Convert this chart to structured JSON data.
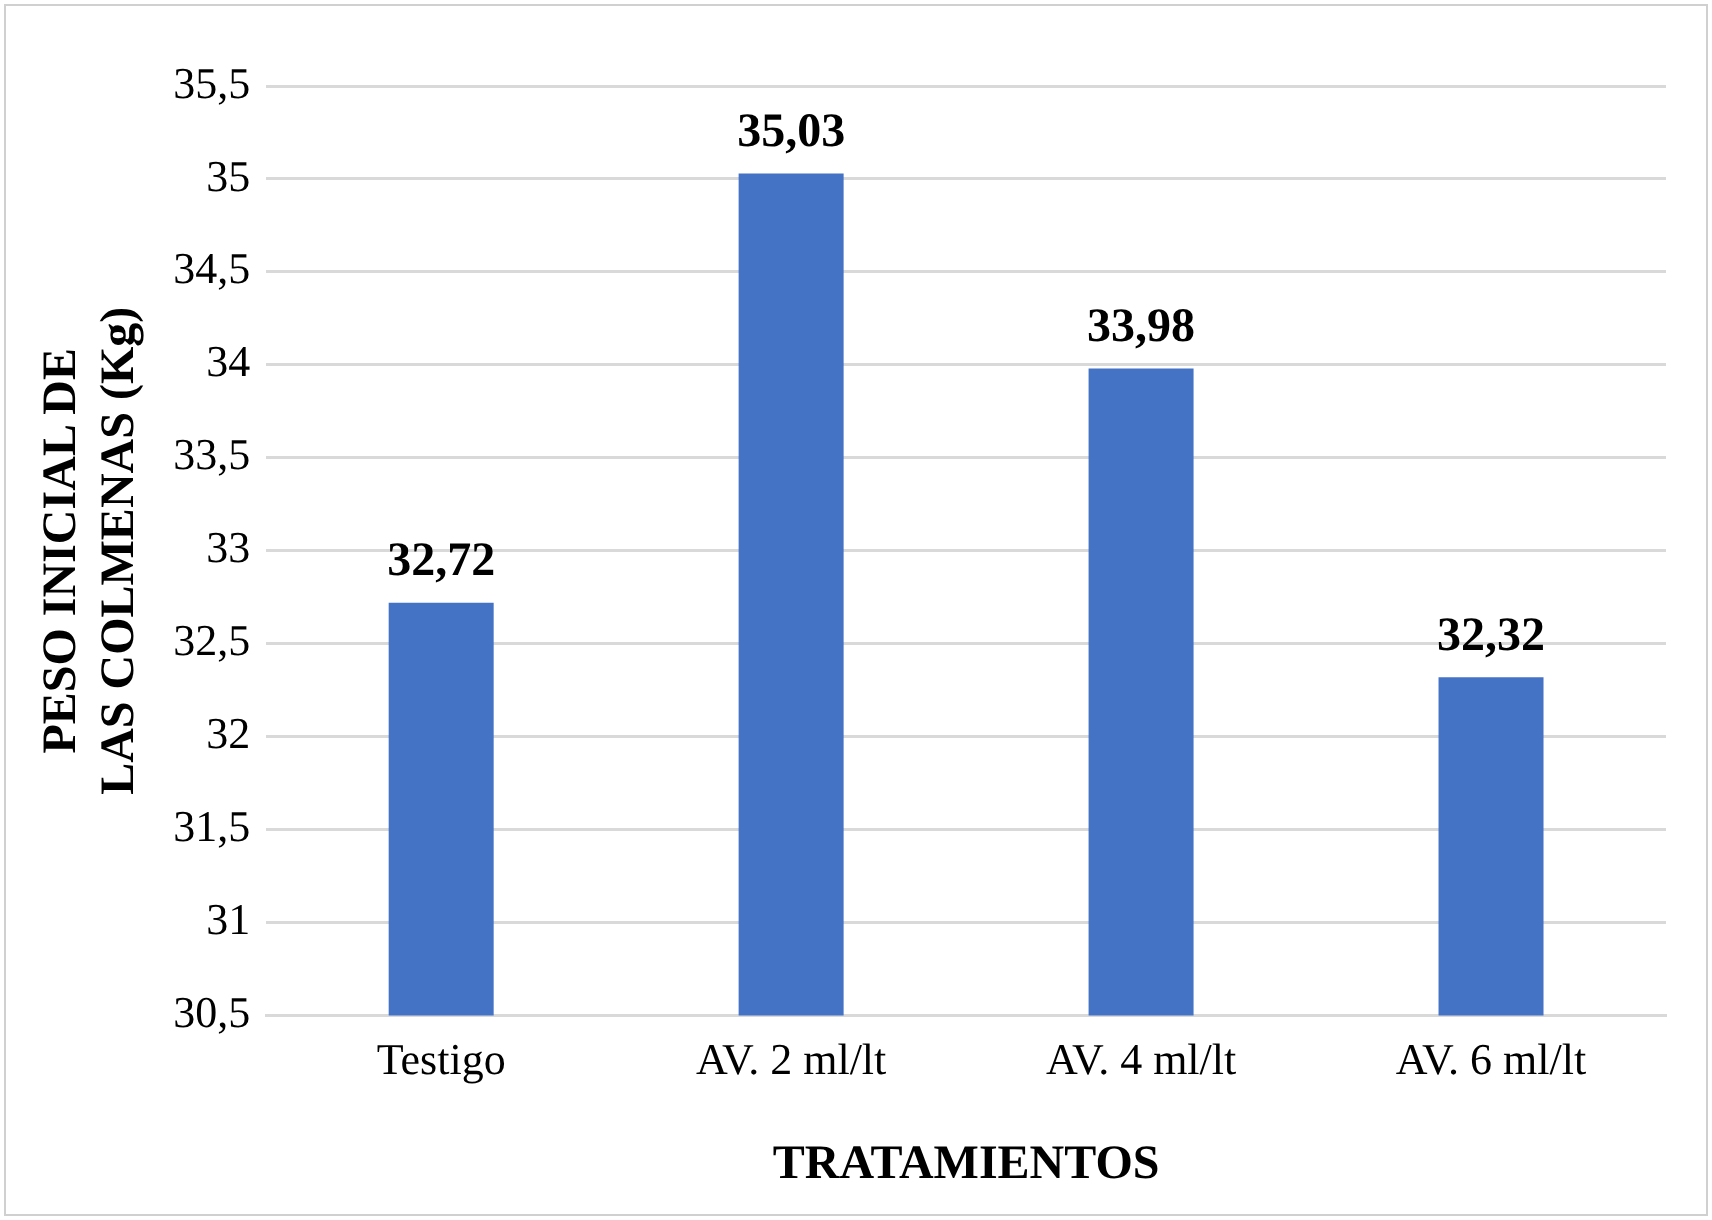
{
  "chart_data": {
    "type": "bar",
    "xlabel": "TRATAMIENTOS",
    "ylabel": "PESO INICIAL DE LAS COLMENAS (Kg)",
    "categories": [
      "Testigo",
      "AV. 2 ml/lt",
      "AV. 4 ml/lt",
      "AV. 6 ml/lt"
    ],
    "values": [
      32.72,
      35.03,
      33.98,
      32.32
    ],
    "value_labels": [
      "32,72",
      "35,03",
      "33,98",
      "32,32"
    ],
    "color": "#4472c4",
    "ylim": [
      30.5,
      35.5
    ],
    "yticks": [
      {
        "value": 30.5,
        "label": "30,5"
      },
      {
        "value": 31,
        "label": "31"
      },
      {
        "value": 31.5,
        "label": "31,5"
      },
      {
        "value": 32,
        "label": "32"
      },
      {
        "value": 32.5,
        "label": "32,5"
      },
      {
        "value": 33,
        "label": "33"
      },
      {
        "value": 33.5,
        "label": "33,5"
      },
      {
        "value": 34,
        "label": "34"
      },
      {
        "value": 34.5,
        "label": "34,5"
      },
      {
        "value": 35,
        "label": "35"
      },
      {
        "value": 35.5,
        "label": "35,5"
      }
    ],
    "grid": "y"
  }
}
